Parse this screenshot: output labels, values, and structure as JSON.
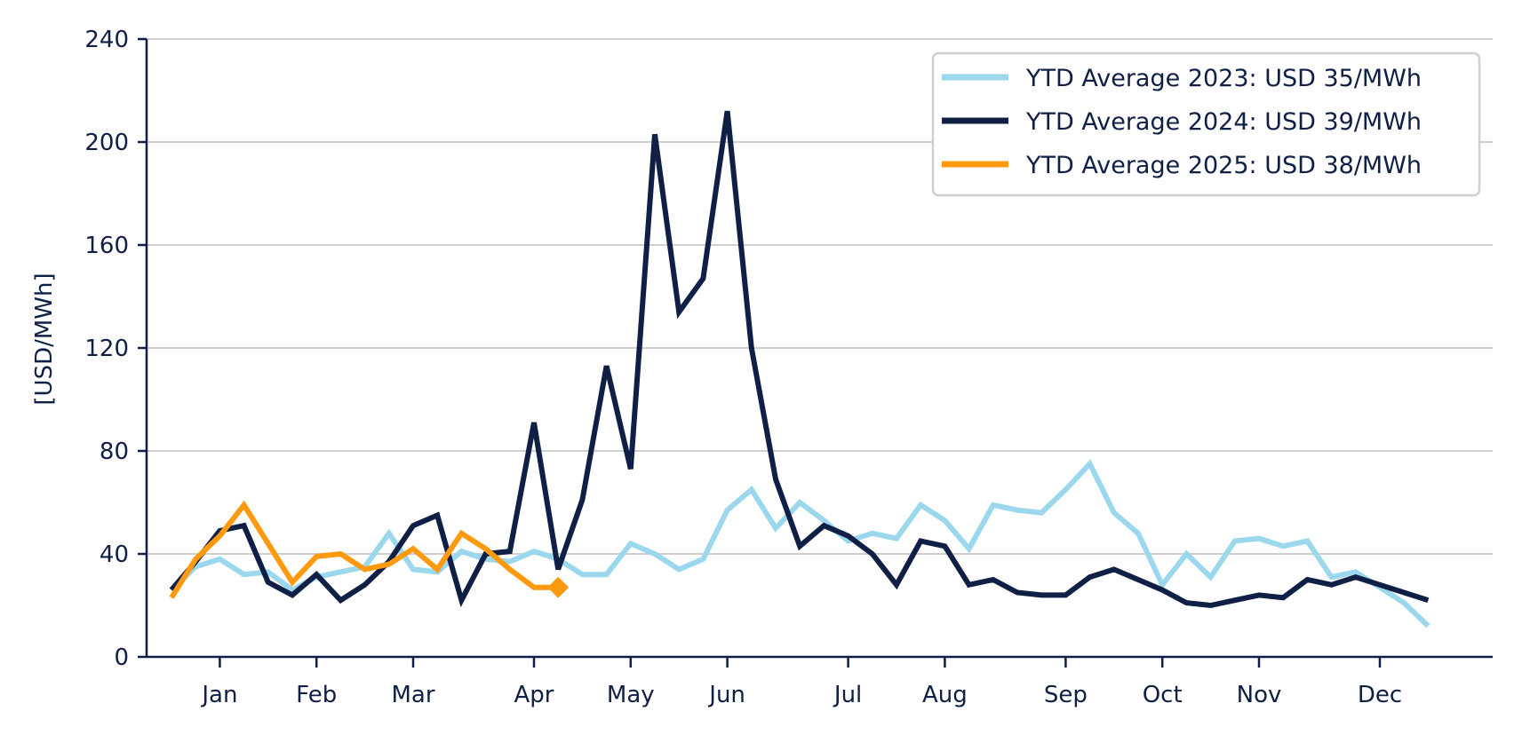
{
  "chart_data": {
    "type": "line",
    "title": "",
    "xlabel": "",
    "ylabel": "[USD/MWh]",
    "ylim": [
      0,
      240
    ],
    "yticks": [
      0,
      40,
      80,
      120,
      160,
      200,
      240
    ],
    "x_domain": [
      0,
      56
    ],
    "xticks": [
      {
        "label": "Jan",
        "x": 2
      },
      {
        "label": "Feb",
        "x": 6
      },
      {
        "label": "Mar",
        "x": 10
      },
      {
        "label": "Apr",
        "x": 15
      },
      {
        "label": "May",
        "x": 19
      },
      {
        "label": "Jun",
        "x": 23
      },
      {
        "label": "Jul",
        "x": 28
      },
      {
        "label": "Aug",
        "x": 32
      },
      {
        "label": "Sep",
        "x": 37
      },
      {
        "label": "Oct",
        "x": 41
      },
      {
        "label": "Nov",
        "x": 45
      },
      {
        "label": "Dec",
        "x": 50
      }
    ],
    "grid": true,
    "legend_position": "top-right",
    "series": [
      {
        "name": "YTD Average 2023: USD 35/MWh",
        "color": "#9bd8ee",
        "x": [
          0,
          1,
          2,
          3,
          4,
          5,
          6,
          7,
          8,
          9,
          10,
          11,
          12,
          13,
          14,
          15,
          16,
          17,
          18,
          19,
          20,
          21,
          22,
          23,
          24,
          25,
          26,
          27,
          28,
          29,
          30,
          31,
          32,
          33,
          34,
          35,
          36,
          37,
          38,
          39,
          40,
          41,
          42,
          43,
          44,
          45,
          46,
          47,
          48,
          49,
          50,
          51,
          52
        ],
        "y": [
          26,
          35,
          38,
          32,
          33,
          26,
          31,
          33,
          35,
          48,
          34,
          33,
          41,
          38,
          37,
          41,
          38,
          32,
          32,
          44,
          40,
          34,
          38,
          57,
          65,
          50,
          60,
          53,
          45,
          48,
          46,
          59,
          53,
          42,
          59,
          57,
          56,
          65,
          75,
          56,
          48,
          28,
          40,
          31,
          45,
          46,
          43,
          45,
          31,
          33,
          27,
          21,
          12
        ]
      },
      {
        "name": "YTD Average 2024: USD 39/MWh",
        "color": "#0f1f45",
        "x": [
          0,
          1,
          2,
          3,
          4,
          5,
          6,
          7,
          8,
          9,
          10,
          11,
          12,
          13,
          14,
          15,
          16,
          17,
          18,
          19,
          20,
          21,
          22,
          23,
          24,
          25,
          26,
          27,
          28,
          29,
          30,
          31,
          32,
          33,
          34,
          35,
          36,
          37,
          38,
          39,
          40,
          41,
          42,
          43,
          44,
          45,
          46,
          47,
          48,
          49,
          50,
          51,
          52
        ],
        "y": [
          26,
          37,
          49,
          51,
          29,
          24,
          32,
          22,
          28,
          37,
          51,
          55,
          22,
          40,
          41,
          91,
          34,
          61,
          113,
          73,
          203,
          134,
          147,
          212,
          120,
          69,
          43,
          51,
          47,
          40,
          28,
          45,
          43,
          28,
          30,
          25,
          24,
          24,
          31,
          34,
          30,
          26,
          21,
          20,
          22,
          24,
          23,
          30,
          28,
          31,
          28,
          25,
          22
        ]
      },
      {
        "name": "YTD Average 2025: USD 38/MWh",
        "color": "#ff9a0e",
        "x": [
          0,
          1,
          2,
          3,
          4,
          5,
          6,
          7,
          8,
          9,
          10,
          11,
          12,
          13,
          14,
          15,
          16
        ],
        "y": [
          23,
          38,
          47,
          59,
          44,
          29,
          39,
          40,
          34,
          36,
          42,
          34,
          48,
          42,
          34,
          27,
          27
        ],
        "end_marker": "diamond"
      }
    ]
  }
}
